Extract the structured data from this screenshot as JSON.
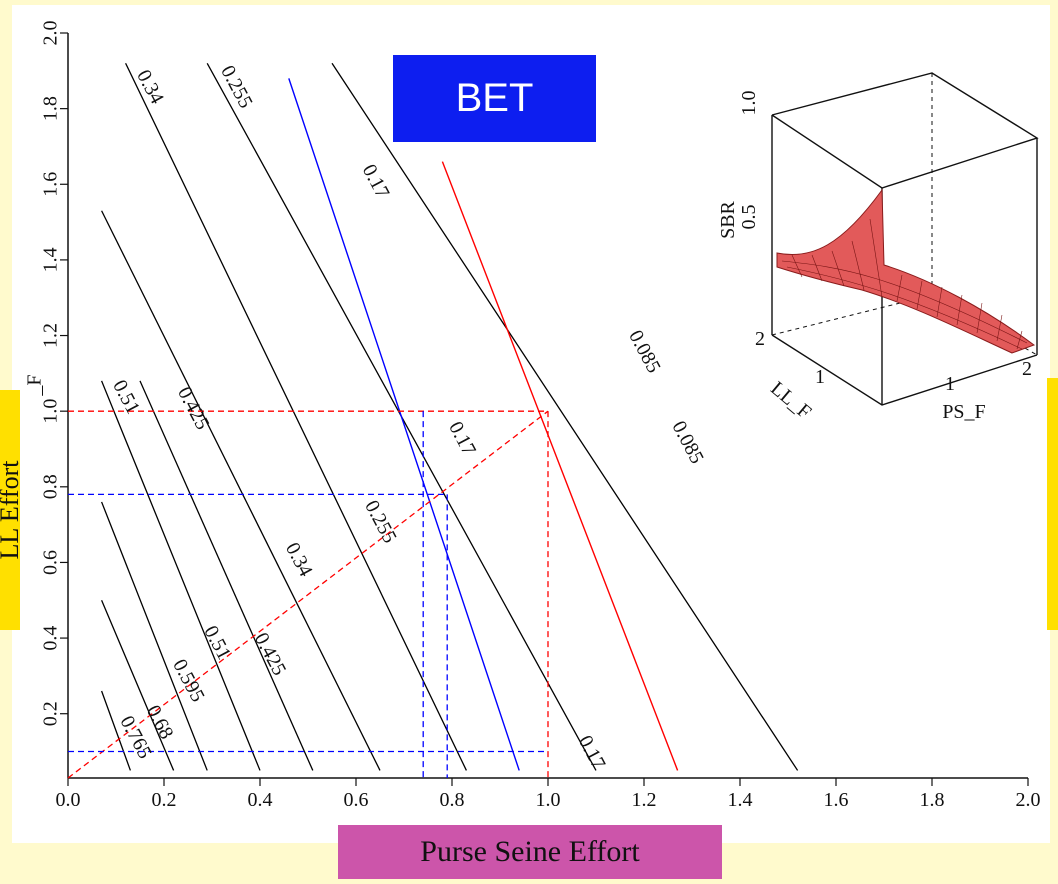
{
  "chart_data": [
    {
      "type": "contour",
      "title": "BET",
      "xlabel": "Purse Seine Effort",
      "ylabel": "LL Effort",
      "ylabel_axis_suffix": "_F",
      "xlim": [
        0.0,
        2.0
      ],
      "ylim": [
        0.03,
        2.0
      ],
      "x_ticks": [
        "0.0",
        "0.2",
        "0.4",
        "0.6",
        "0.8",
        "1.0",
        "1.2",
        "1.4",
        "1.6",
        "1.8",
        "2.0"
      ],
      "y_ticks": [
        "0.2",
        "0.4",
        "0.6",
        "0.8",
        "1.0",
        "1.2",
        "1.4",
        "1.6",
        "1.8",
        "2.0"
      ],
      "contours": [
        {
          "level": "0.765",
          "x0": 0.13,
          "y0": 0.05,
          "x1": 0.07,
          "y1": 0.26
        },
        {
          "level": "0.68",
          "x0": 0.22,
          "y0": 0.05,
          "x1": 0.07,
          "y1": 0.5
        },
        {
          "level": "0.595",
          "x0": 0.29,
          "y0": 0.05,
          "x1": 0.07,
          "y1": 0.76
        },
        {
          "level": "0.51",
          "x0": 0.4,
          "y0": 0.05,
          "x1": 0.07,
          "y1": 1.08
        },
        {
          "level": "0.425",
          "x0": 0.51,
          "y0": 0.05,
          "x1": 0.15,
          "y1": 1.08
        },
        {
          "level": "0.34",
          "x0": 0.65,
          "y0": 0.05,
          "x1": 0.07,
          "y1": 1.53
        },
        {
          "level": "0.255",
          "x0": 0.83,
          "y0": 0.05,
          "x1": 0.12,
          "y1": 1.92
        },
        {
          "level": "0.17",
          "x0": 1.1,
          "y0": 0.05,
          "x1": 0.29,
          "y1": 1.92
        },
        {
          "level": "0.085",
          "x0": 1.52,
          "y0": 0.05,
          "x1": 0.55,
          "y1": 1.92
        }
      ],
      "contour_labels": [
        {
          "text": "0.34",
          "x": 0.16,
          "y": 1.85
        },
        {
          "text": "0.255",
          "x": 0.34,
          "y": 1.85
        },
        {
          "text": "0.17",
          "x": 0.63,
          "y": 1.6
        },
        {
          "text": "0.085",
          "x": 1.19,
          "y": 1.15
        },
        {
          "text": "0.51",
          "x": 0.11,
          "y": 1.03
        },
        {
          "text": "0.425",
          "x": 0.25,
          "y": 1.0
        },
        {
          "text": "0.17",
          "x": 0.81,
          "y": 0.92
        },
        {
          "text": "0.085",
          "x": 1.28,
          "y": 0.91
        },
        {
          "text": "0.255",
          "x": 0.64,
          "y": 0.7
        },
        {
          "text": "0.34",
          "x": 0.47,
          "y": 0.6
        },
        {
          "text": "0.51",
          "x": 0.3,
          "y": 0.38
        },
        {
          "text": "0.425",
          "x": 0.41,
          "y": 0.35
        },
        {
          "text": "0.595",
          "x": 0.24,
          "y": 0.28
        },
        {
          "text": "0.68",
          "x": 0.18,
          "y": 0.17
        },
        {
          "text": "0.765",
          "x": 0.13,
          "y": 0.13
        },
        {
          "text": "0.17",
          "x": 1.08,
          "y": 0.09
        }
      ],
      "reference_lines": [
        {
          "name": "blue",
          "x0": 0.46,
          "y0": 1.88,
          "x1": 0.94,
          "y1": 0.05
        },
        {
          "name": "red",
          "x0": 0.78,
          "y0": 1.66,
          "x1": 1.27,
          "y1": 0.05
        }
      ],
      "dashed_guides": {
        "red_y": 1.0,
        "red_x": 1.0,
        "blue_y": 0.78,
        "blue_x": 0.79,
        "blue_x2": 0.74,
        "bottom_y": 0.1
      },
      "colors": {
        "blue_line": "#0000ff",
        "red_line": "#ff0000",
        "contour": "#000000"
      }
    },
    {
      "type": "surface3d",
      "zlabel": "SBR",
      "xlabel": "PS_F",
      "ylabel": "LL_F",
      "z_ticks": [
        "0.5",
        "1.0"
      ],
      "x_ticks": [
        "1",
        "2"
      ],
      "y_ticks": [
        "1",
        "2"
      ],
      "surface_color": "#ff6060"
    }
  ]
}
